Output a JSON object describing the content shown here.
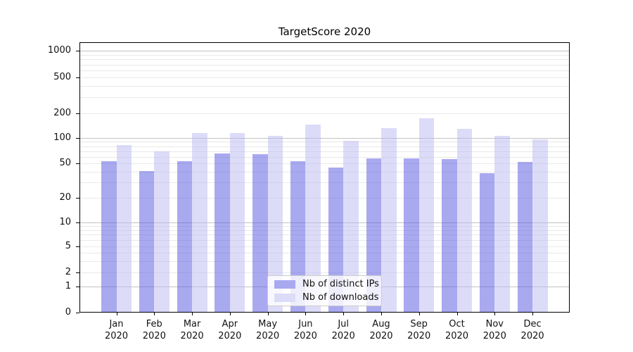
{
  "title": "TargetScore 2020",
  "colors": {
    "bar_ips_fill": "rgba(83,83,225,0.5)",
    "bar_downloads_fill": "rgba(185,185,241,0.5)",
    "bar_ips_effective": "#a9a9f0",
    "bar_downloads_effective": "#dcdcf8",
    "grid_major": "#c2c2c2",
    "grid_minor": "#e9e9e9",
    "spine": "#000000",
    "legend_border": "#cccccc"
  },
  "chart_data": {
    "type": "bar",
    "title": "TargetScore 2020",
    "categories": [
      "Jan 2020",
      "Feb 2020",
      "Mar 2020",
      "Apr 2020",
      "May 2020",
      "Jun 2020",
      "Jul 2020",
      "Aug 2020",
      "Sep 2020",
      "Oct 2020",
      "Nov 2020",
      "Dec 2020"
    ],
    "months_line1": [
      "Jan",
      "Feb",
      "Mar",
      "Apr",
      "May",
      "Jun",
      "Jul",
      "Aug",
      "Sep",
      "Oct",
      "Nov",
      "Dec"
    ],
    "months_line2": "2020",
    "series": [
      {
        "name": "Nb of distinct IPs",
        "values": [
          53,
          41,
          53,
          65,
          64,
          53,
          45,
          57,
          57,
          56,
          39,
          52
        ]
      },
      {
        "name": "Nb of downloads",
        "values": [
          82,
          69,
          114,
          114,
          105,
          145,
          93,
          131,
          172,
          129,
          105,
          96
        ]
      }
    ],
    "xlabel": "",
    "ylabel": "",
    "yscale": "symlog",
    "ylim": [
      0,
      1260
    ],
    "ytick_values": [
      0,
      1,
      2,
      5,
      10,
      20,
      50,
      100,
      200,
      500,
      1000
    ],
    "ytick_labels": [
      "0",
      "1",
      "2",
      "5",
      "10",
      "20",
      "50",
      "100",
      "200",
      "500",
      "1000"
    ],
    "grid": "horizontal, major decades darker + faint log minors",
    "legend_position": "lower center inside plot"
  }
}
